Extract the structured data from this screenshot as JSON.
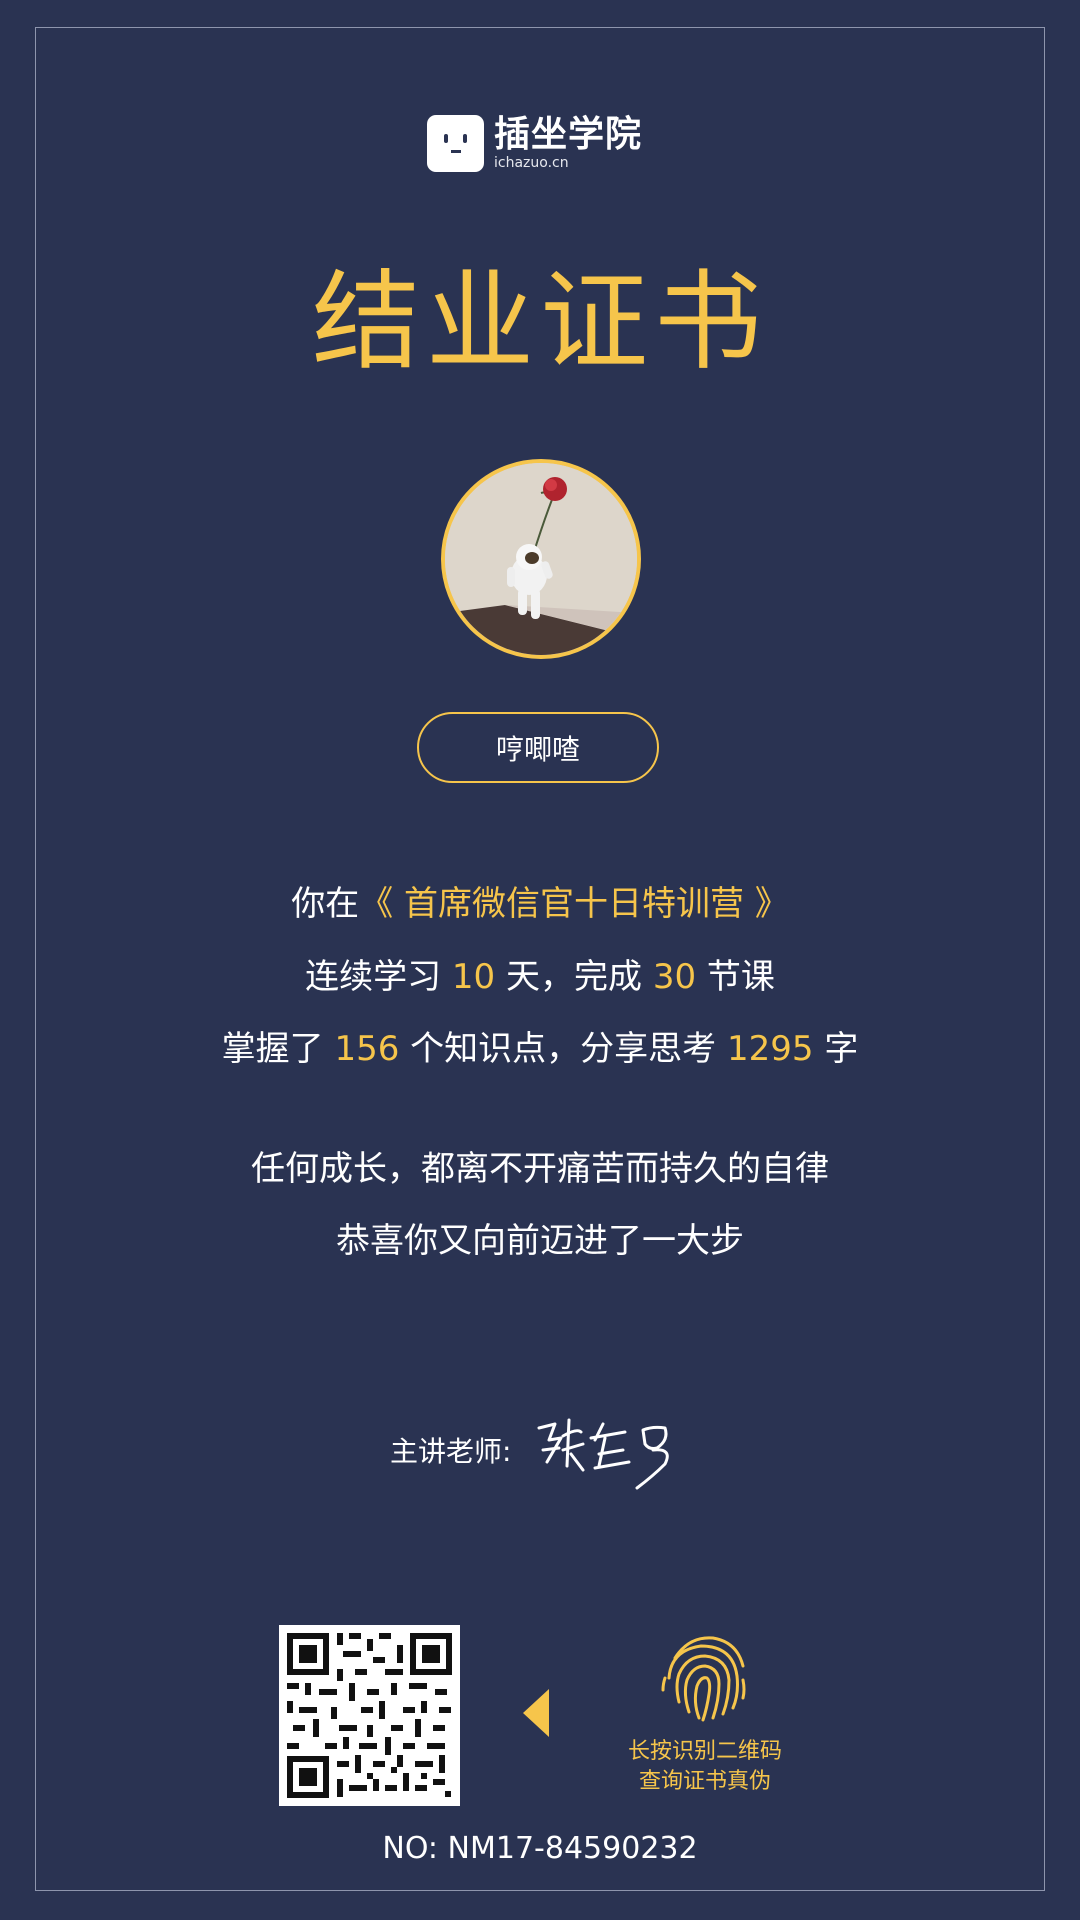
{
  "brand": {
    "name": "插坐学院",
    "url": "ichazuo.cn"
  },
  "certificate": {
    "title": "结业证书",
    "student_name": "哼唧喳",
    "number_label": "NO: NM17-84590232"
  },
  "summary": {
    "line1_prefix": "你在",
    "course": "《 首席微信官十日特训营 》",
    "line2_a": "连续学习 ",
    "days": "10",
    "line2_b": " 天，完成 ",
    "lessons": "30",
    "line2_c": " 节课",
    "line3_a": "掌握了 ",
    "knowledge_points": "156",
    "line3_b": " 个知识点，分享思考 ",
    "words": "1295",
    "line3_c": " 字",
    "motto1": "任何成长，都离不开痛苦而持久的自律",
    "motto2": "恭喜你又向前迈进了一大步"
  },
  "teacher": {
    "label": "主讲老师:",
    "signature": "张左罗"
  },
  "verify": {
    "line1": "长按识别二维码",
    "line2": "查询证书真伪"
  },
  "colors": {
    "background": "#2a3352",
    "accent": "#f6c54b",
    "text": "#ffffff"
  },
  "icons": [
    "logo-face-icon",
    "avatar-astronaut-rose",
    "qr-code",
    "arrow-left-icon",
    "fingerprint-icon"
  ]
}
